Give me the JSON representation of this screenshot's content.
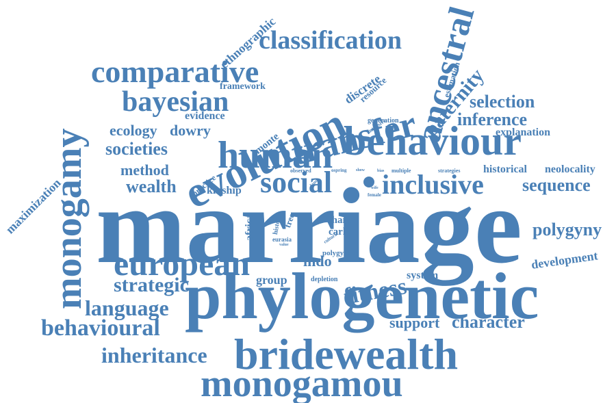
{
  "word_color": "#4a80b6",
  "background_color": "#ffffff",
  "words": {
    "marriage": "marriage",
    "phylogenetic": "phylogenetic",
    "bridewealth": "bridewealth",
    "monogamou": "monogamou",
    "behaviour": "behaviour",
    "evolution": "evolution",
    "human": "human",
    "transfer": "transfer",
    "ancestral": "ancestral",
    "monogamy": "monogamy",
    "comparative": "comparative",
    "classification": "classification",
    "bayesian": "bayesian",
    "european": "european",
    "social": "social",
    "inclusive": "inclusive",
    "fitness": "fitness",
    "language": "language",
    "behavioural": "behavioural",
    "inheritance": "inheritance",
    "strategic": "strategic",
    "societies": "societies",
    "paternity": "paternity",
    "polygyny": "polygyny",
    "sequence": "sequence",
    "selection": "selection",
    "inference": "inference",
    "wealth": "wealth",
    "character": "character",
    "support": "support",
    "ecology": "ecology",
    "dowry": "dowry",
    "method": "method",
    "development": "development",
    "maximization": "maximization",
    "ethnographic": "ethnographic",
    "discrete": "discrete",
    "resource": "resource",
    "framework": "framework",
    "evidence": "evidence",
    "monte": "monte",
    "explanation": "explanation",
    "historical": "historical",
    "neolocality": "neolocality",
    "kinship": "kinship",
    "practice": "practice",
    "indo": "indo",
    "group": "group",
    "system": "system",
    "estimation": "estimation",
    "generation": "generation",
    "chain": "chain",
    "carlo": "carlo",
    "africa": "africa",
    "norm": "norm",
    "tree": "tree",
    "history": "history",
    "polygynous": "polygynous",
    "depletion": "depletion",
    "eurasia": "eurasia",
    "observed": "observed",
    "ospring": "ospring",
    "multiple": "multiple",
    "strategies": "strategies",
    "intensive": "intensive",
    "land": "land",
    "female": "female",
    "cultural": "cultural",
    "value": "value",
    "bias": "bias",
    "show": "show",
    "wife": "wife"
  }
}
